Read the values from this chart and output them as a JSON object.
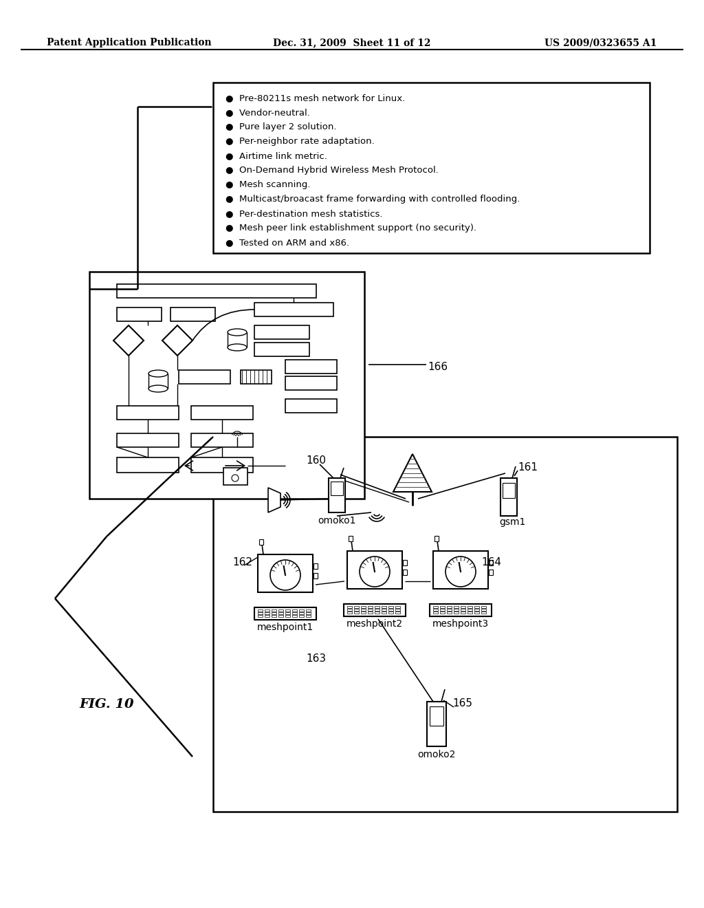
{
  "header_left": "Patent Application Publication",
  "header_mid": "Dec. 31, 2009  Sheet 11 of 12",
  "header_right": "US 2009/0323655 A1",
  "bullet_points": [
    "Pre-80211s mesh network for Linux.",
    "Vendor-neutral.",
    "Pure layer 2 solution.",
    "Per-neighbor rate adaptation.",
    "Airtime link metric.",
    "On-Demand Hybrid Wireless Mesh Protocol.",
    "Mesh scanning.",
    "Multicast/broacast frame forwarding with controlled flooding.",
    "Per-destination mesh statistics.",
    "Mesh peer link establishment support (no security).",
    "Tested on ARM and x86."
  ],
  "label_166": "166",
  "label_160": "160",
  "label_161": "161",
  "label_162": "162",
  "label_163": "163",
  "label_164": "164",
  "label_165": "165",
  "label_omoko1": "omoko1",
  "label_omoko2": "omoko2",
  "label_gsm1": "gsm1",
  "label_meshpoint1": "meshpoint1",
  "label_meshpoint2": "meshpoint2",
  "label_meshpoint3": "meshpoint3",
  "label_fig": "FIG. 10",
  "bg_color": "#ffffff"
}
